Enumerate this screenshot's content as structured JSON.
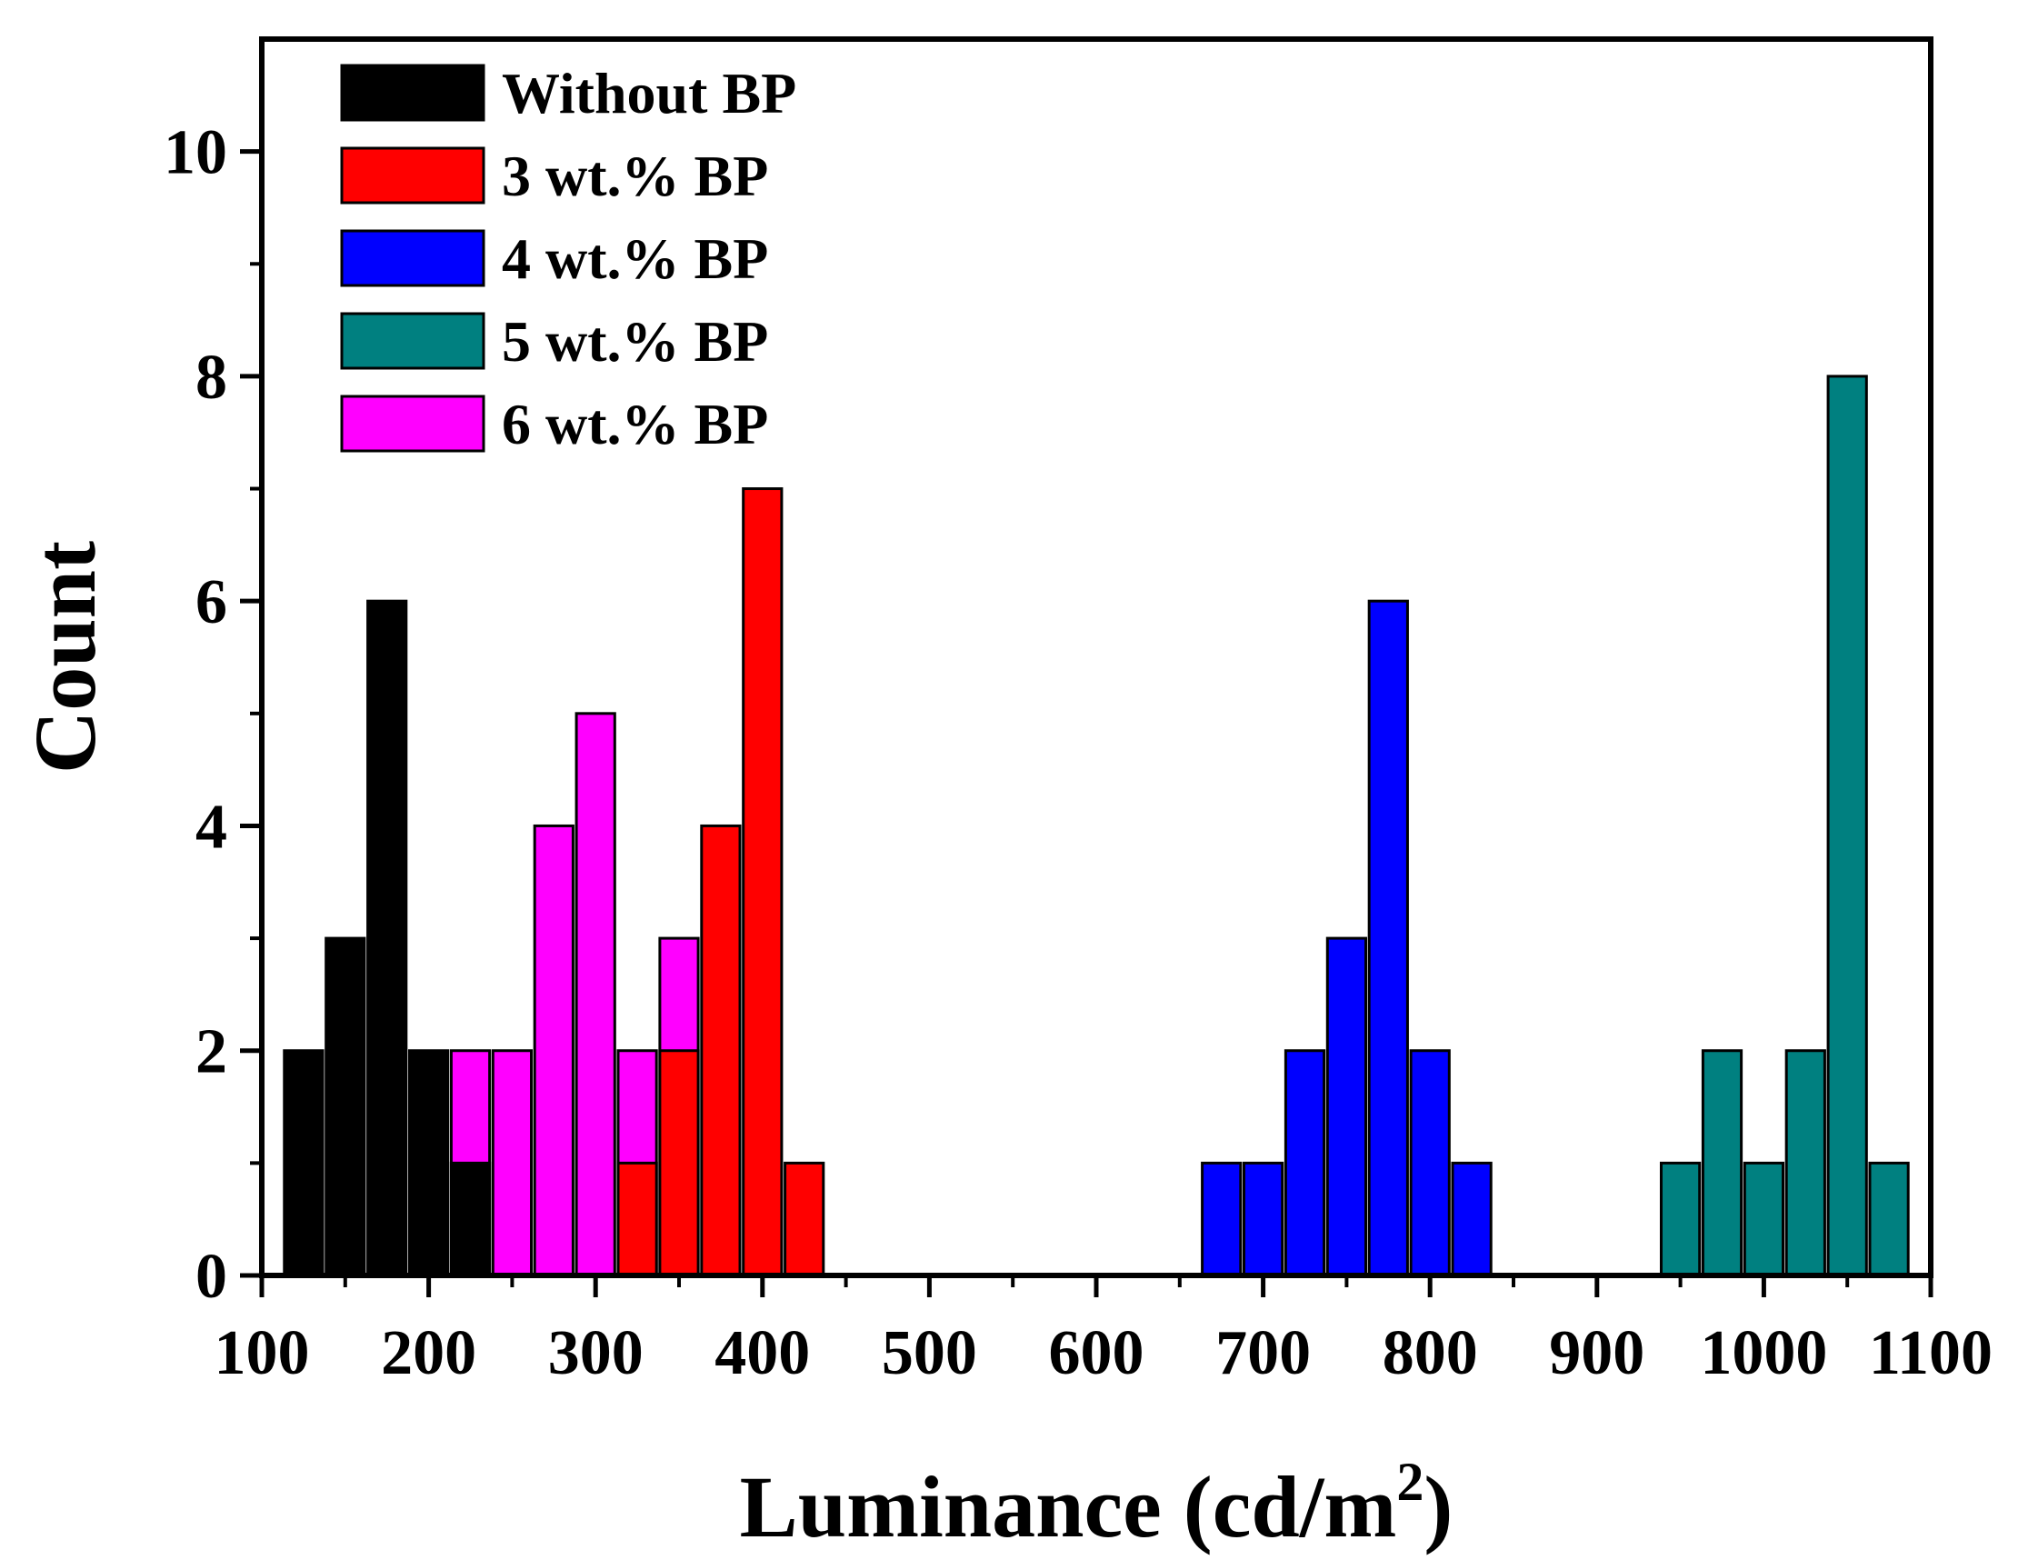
{
  "chart_data": {
    "type": "bar",
    "title": "",
    "xlabel": "Luminance (cd/m",
    "xlabel_superscript": "2",
    "xlabel_close": ")",
    "ylabel": "Count",
    "xlim": [
      100,
      1100
    ],
    "ylim": [
      0,
      11
    ],
    "x_ticks": [
      "100",
      "200",
      "300",
      "400",
      "500",
      "600",
      "700",
      "800",
      "900",
      "1000",
      "1100"
    ],
    "y_ticks": [
      "0",
      "2",
      "4",
      "6",
      "8",
      "10"
    ],
    "bin_width": 25,
    "legend_position": "top-left",
    "series": [
      {
        "name": "Without BP",
        "color": "#000000",
        "x": [
          125,
          150,
          175,
          200,
          225
        ],
        "values": [
          2,
          3,
          6,
          2,
          1
        ]
      },
      {
        "name": "3 wt.% BP",
        "color": "#ff0000",
        "x": [
          325,
          350,
          375,
          400,
          425
        ],
        "values": [
          1,
          2,
          4,
          7,
          1
        ]
      },
      {
        "name": "4 wt.% BP",
        "color": "#0000ff",
        "x": [
          675,
          700,
          725,
          750,
          775,
          800,
          825
        ],
        "values": [
          1,
          1,
          2,
          3,
          6,
          2,
          1
        ]
      },
      {
        "name": "5 wt.% BP",
        "color": "#008080",
        "x": [
          950,
          975,
          1000,
          1025,
          1050,
          1075
        ],
        "values": [
          1,
          2,
          1,
          2,
          8,
          1
        ]
      },
      {
        "name": "6 wt.% BP",
        "color": "#ff00ff",
        "x": [
          225,
          250,
          275,
          300,
          325,
          350
        ],
        "values": [
          2,
          2,
          4,
          5,
          2,
          3
        ]
      }
    ],
    "draw_order": [
      "6 wt.% BP",
      "Without BP",
      "3 wt.% BP",
      "4 wt.% BP",
      "5 wt.% BP"
    ]
  }
}
